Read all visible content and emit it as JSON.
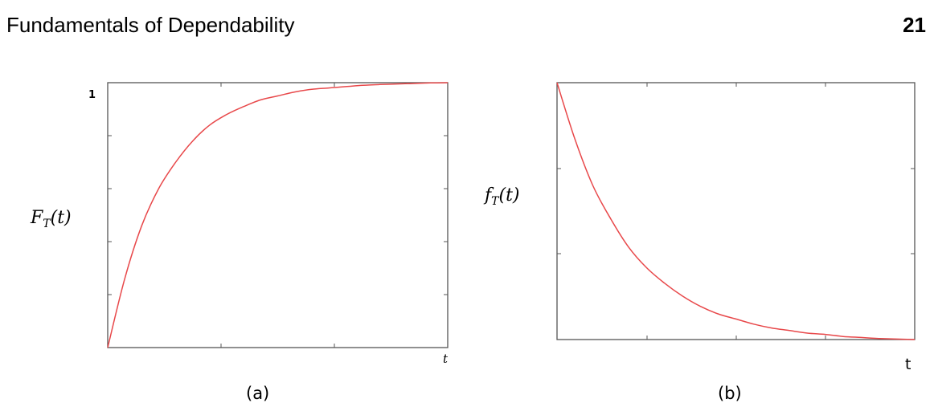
{
  "page": {
    "header_title": "Fundamentals of Dependability",
    "page_number": "21"
  },
  "chart_data": [
    {
      "type": "line",
      "panel_caption": "(a)",
      "ylabel": "F_T(t)",
      "xlabel": "t",
      "y_tick_labels": [
        "1"
      ],
      "xlim": [
        0,
        1
      ],
      "ylim": [
        0,
        1
      ],
      "grid": false,
      "series": [
        {
          "color": "#e8484a",
          "x": [
            0,
            0.05,
            0.1,
            0.15,
            0.2,
            0.25,
            0.3,
            0.35,
            0.4,
            0.45,
            0.5,
            0.55,
            0.6,
            0.65,
            0.7,
            0.75,
            0.8,
            0.85,
            0.9,
            0.95,
            1.0
          ],
          "y": [
            0,
            0.26,
            0.46,
            0.6,
            0.7,
            0.78,
            0.84,
            0.88,
            0.91,
            0.935,
            0.95,
            0.965,
            0.975,
            0.98,
            0.985,
            0.99,
            0.993,
            0.995,
            0.997,
            0.999,
            1.0
          ]
        }
      ]
    },
    {
      "type": "line",
      "panel_caption": "(b)",
      "ylabel": "f_T(t)",
      "xlabel": "t",
      "xlim": [
        0,
        1
      ],
      "ylim": [
        0,
        1
      ],
      "grid": false,
      "series": [
        {
          "color": "#e8484a",
          "x": [
            0,
            0.05,
            0.1,
            0.15,
            0.2,
            0.25,
            0.3,
            0.35,
            0.4,
            0.45,
            0.5,
            0.55,
            0.6,
            0.65,
            0.7,
            0.75,
            0.8,
            0.85,
            0.9,
            0.95,
            1.0
          ],
          "y": [
            1.0,
            0.78,
            0.6,
            0.47,
            0.36,
            0.28,
            0.22,
            0.17,
            0.13,
            0.1,
            0.08,
            0.06,
            0.045,
            0.035,
            0.025,
            0.02,
            0.012,
            0.008,
            0.004,
            0.002,
            0.0
          ]
        }
      ]
    }
  ]
}
